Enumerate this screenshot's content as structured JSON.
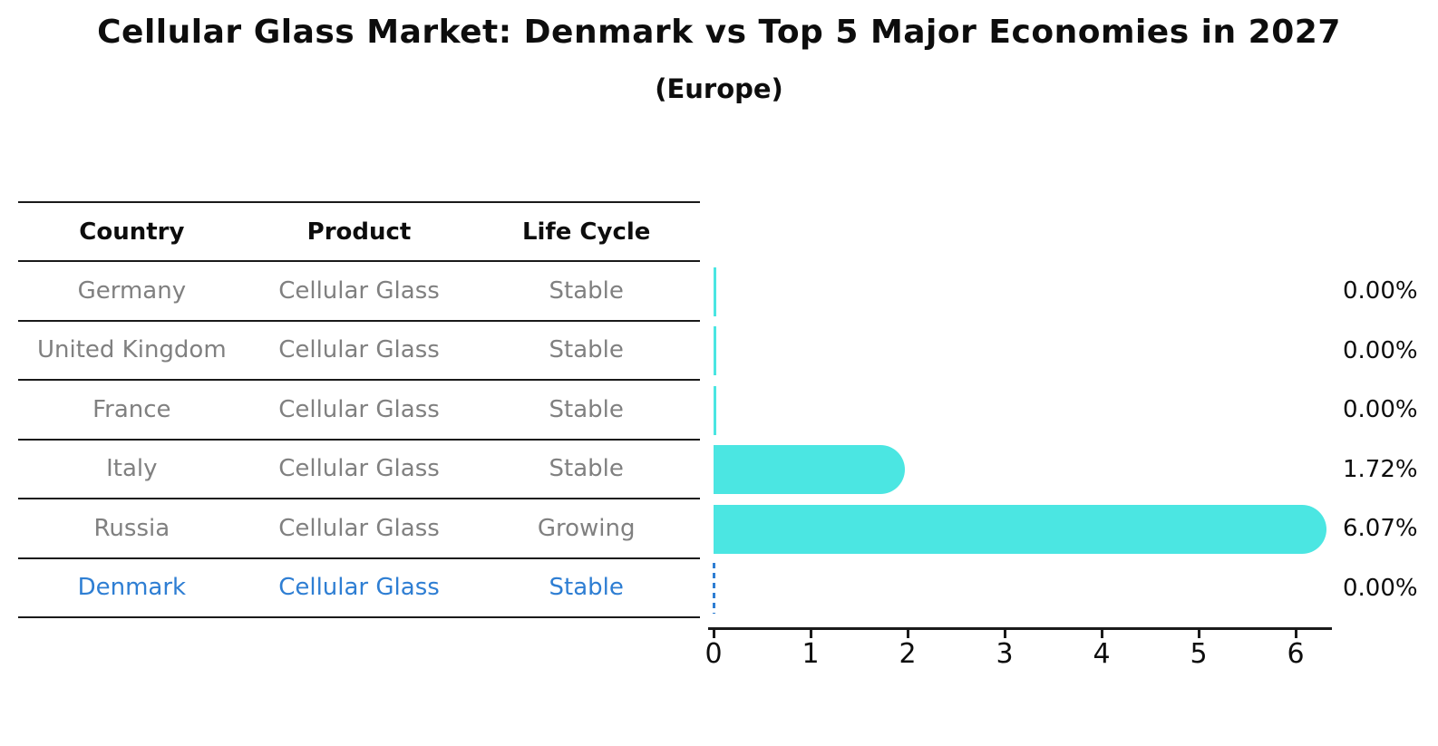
{
  "title": "Cellular Glass Market: Denmark vs Top 5 Major Economies in 2027",
  "subtitle": "(Europe)",
  "table": {
    "headers": [
      "Country",
      "Product",
      "Life Cycle"
    ],
    "rows": [
      {
        "country": "Germany",
        "product": "Cellular Glass",
        "life_cycle": "Stable",
        "highlight": false
      },
      {
        "country": "United Kingdom",
        "product": "Cellular Glass",
        "life_cycle": "Stable",
        "highlight": false
      },
      {
        "country": "France",
        "product": "Cellular Glass",
        "life_cycle": "Stable",
        "highlight": false
      },
      {
        "country": "Italy",
        "product": "Cellular Glass",
        "life_cycle": "Stable",
        "highlight": false
      },
      {
        "country": "Russia",
        "product": "Cellular Glass",
        "life_cycle": "Growing",
        "highlight": false
      },
      {
        "country": "Denmark",
        "product": "Cellular Glass",
        "life_cycle": "Stable",
        "highlight": true
      }
    ]
  },
  "chart_data": {
    "type": "bar",
    "orientation": "horizontal",
    "title": "Cellular Glass Market: Denmark vs Top 5 Major Economies in 2027 (Europe)",
    "categories": [
      "Germany",
      "United Kingdom",
      "France",
      "Italy",
      "Russia",
      "Denmark"
    ],
    "values": [
      0.0,
      0.0,
      0.0,
      1.72,
      6.07,
      0.0
    ],
    "value_labels": [
      "0.00%",
      "0.00%",
      "0.00%",
      "1.72%",
      "6.07%",
      "0.00%"
    ],
    "unit": "percent",
    "xlim": [
      0,
      6.4
    ],
    "x_ticks": [
      "0",
      "1",
      "2",
      "3",
      "4",
      "5",
      "6"
    ],
    "grid": false,
    "legend": false,
    "bar_color": "#4be6e2",
    "highlight_color": "#2e7ed3",
    "highlight_index": 5,
    "highlight_style": "dashed-outline-zero-bar"
  }
}
